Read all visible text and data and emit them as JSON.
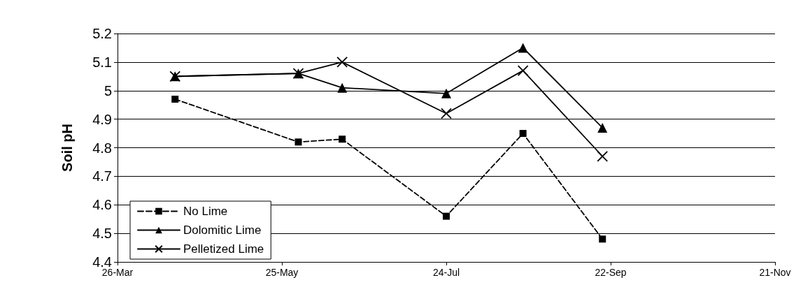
{
  "chart_data": {
    "type": "line",
    "ylabel": "Soil pH",
    "x": [
      "--04-16",
      "--05-31",
      "--06-16",
      "--07-24",
      "--08-21",
      "--09-19"
    ],
    "series": [
      {
        "name": "No Lime",
        "color": "#000000",
        "marker": "square",
        "line_style": "dashed",
        "values": [
          4.97,
          4.82,
          4.83,
          4.56,
          4.85,
          4.48
        ]
      },
      {
        "name": "Dolomitic Lime",
        "color": "#000000",
        "marker": "triangle",
        "line_style": "solid",
        "values": [
          5.05,
          5.06,
          5.01,
          4.99,
          5.15,
          4.87
        ]
      },
      {
        "name": "Pelletized Lime",
        "color": "#000000",
        "marker": "cross",
        "line_style": "solid",
        "values": [
          5.05,
          5.06,
          5.1,
          4.92,
          5.07,
          4.77
        ]
      }
    ],
    "xlim": [
      "--03-26",
      "--11-21"
    ],
    "xticks": [
      {
        "value": "--03-26",
        "label": "26-Mar"
      },
      {
        "value": "--05-25",
        "label": "25-May"
      },
      {
        "value": "--07-24",
        "label": "24-Jul"
      },
      {
        "value": "--09-22",
        "label": "22-Sep"
      },
      {
        "value": "--11-21",
        "label": "21-Nov"
      }
    ],
    "ylim": [
      4.4,
      5.2
    ],
    "yticks": [
      4.4,
      4.5,
      4.6,
      4.7,
      4.8,
      4.9,
      5,
      5.1,
      5.2
    ],
    "grid": "y",
    "legend": "bottom left"
  }
}
